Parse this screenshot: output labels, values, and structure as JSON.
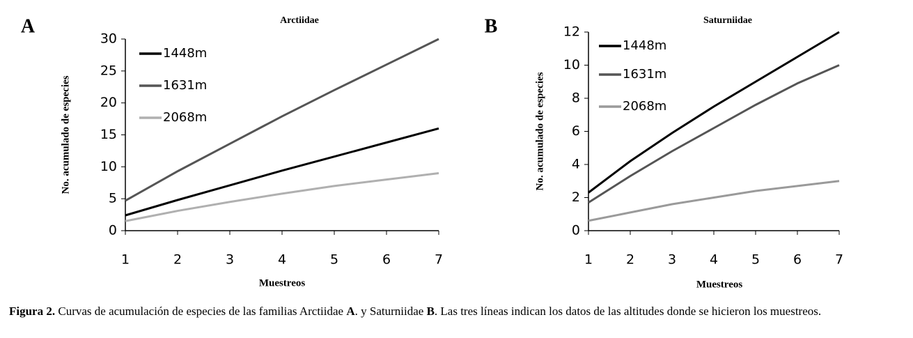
{
  "chart_data": [
    {
      "type": "line",
      "panel": "A",
      "title": "Arctiidae",
      "xlabel": "Muestreos",
      "ylabel": "No. acumulado de especies",
      "x": [
        1,
        2,
        3,
        4,
        5,
        6,
        7
      ],
      "xlim": [
        1,
        7
      ],
      "xticks": [
        1,
        2,
        3,
        4,
        5,
        6,
        7
      ],
      "ylim": [
        0,
        30
      ],
      "yticks": [
        0,
        5,
        10,
        15,
        20,
        25,
        30
      ],
      "legend": "upper left",
      "series": [
        {
          "name": "1448m",
          "color": "#000000",
          "values": [
            2.4,
            4.8,
            7.1,
            9.4,
            11.6,
            13.8,
            16.0
          ]
        },
        {
          "name": "1631m",
          "color": "#555555",
          "values": [
            4.7,
            9.3,
            13.6,
            17.9,
            22.0,
            26.0,
            30.0
          ]
        },
        {
          "name": "2068m",
          "color": "#b0b0b0",
          "values": [
            1.5,
            3.1,
            4.5,
            5.8,
            7.0,
            8.0,
            9.0
          ]
        }
      ]
    },
    {
      "type": "line",
      "panel": "B",
      "title": "Saturniidae",
      "xlabel": "Muestreos",
      "ylabel": "No. acumulado de especies",
      "x": [
        1,
        2,
        3,
        4,
        5,
        6,
        7
      ],
      "xlim": [
        1,
        7
      ],
      "xticks": [
        1,
        2,
        3,
        4,
        5,
        6,
        7
      ],
      "ylim": [
        0,
        12
      ],
      "yticks": [
        0,
        2,
        4,
        6,
        8,
        10,
        12
      ],
      "legend": "upper left",
      "series": [
        {
          "name": "1448m",
          "color": "#000000",
          "values": [
            2.3,
            4.2,
            5.9,
            7.5,
            9.0,
            10.5,
            12.0
          ]
        },
        {
          "name": "1631m",
          "color": "#555555",
          "values": [
            1.7,
            3.3,
            4.8,
            6.2,
            7.6,
            8.9,
            10.0
          ]
        },
        {
          "name": "2068m",
          "color": "#9a9a9a",
          "values": [
            0.6,
            1.1,
            1.6,
            2.0,
            2.4,
            2.7,
            3.0
          ]
        }
      ]
    }
  ],
  "caption": [
    {
      "text": "Figura 2.",
      "bold": true
    },
    {
      "text": " Curvas de acumulación de especies de las familias Arctiidae ",
      "bold": false
    },
    {
      "text": "A",
      "bold": true
    },
    {
      "text": ". y Saturniidae ",
      "bold": false
    },
    {
      "text": "B",
      "bold": true
    },
    {
      "text": ". Las tres líneas indican los datos de las altitudes donde se hicieron los muestreos.",
      "bold": false
    }
  ]
}
